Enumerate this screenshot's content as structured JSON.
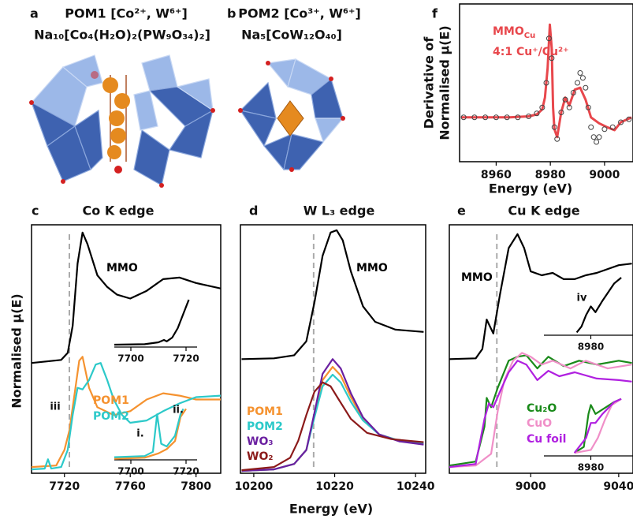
{
  "panels": [
    {
      "label": "a",
      "title": "POM1 [Co²⁺, W⁶⁺]",
      "formula": "Na₁₀[Co₄(H₂O)₂(PW₉O₃₄)₂]"
    },
    {
      "label": "b",
      "title": "POM2 [Co³⁺, W⁶⁺]",
      "formula": "Na₅[CoW₁₂O₄₀]"
    }
  ],
  "y_label": "Normalised μ(E)",
  "x_label": "Energy (eV)",
  "chart_data": [
    {
      "type": "line",
      "panel": "f",
      "xlabel": "Energy (eV)",
      "ylabel": [
        "Derivative of",
        "Normalised μ(E)"
      ],
      "xlim": [
        8946.5,
        9010.5
      ],
      "ylim": [
        -0.45,
        1.15
      ],
      "xticks": [
        8960,
        8980,
        9000
      ],
      "legend_text": [
        {
          "text": "MMO",
          "subscript": "Cu"
        },
        "4:1 Cu⁺/Cu²⁺"
      ],
      "series": [
        {
          "type": "line",
          "color": "#e8474c",
          "x": [
            8947,
            8965,
            8972,
            8975,
            8977,
            8978,
            8979,
            8979.8,
            8980.5,
            8981,
            8981.5,
            8982.5,
            8984,
            8985.5,
            8987,
            8989,
            8991,
            8993,
            8995,
            8998,
            9001,
            9003.7,
            9006,
            9010
          ],
          "values": [
            0,
            0,
            0.01,
            0.03,
            0.08,
            0.2,
            0.5,
            0.94,
            0.7,
            0.1,
            -0.12,
            -0.2,
            0.05,
            0.2,
            0.12,
            0.28,
            0.3,
            0.18,
            0,
            -0.06,
            -0.1,
            -0.13,
            -0.05,
            0
          ]
        },
        {
          "type": "scatter",
          "color": "#444444",
          "x": [
            8948,
            8952,
            8956,
            8960,
            8964,
            8968,
            8972,
            8975,
            8977,
            8978.5,
            8979.5,
            8980.5,
            8981.5,
            8982.5,
            8984,
            8985.5,
            8987,
            8988.5,
            8990,
            8991,
            8992,
            8993,
            8994,
            8995,
            8996,
            8997,
            8998,
            9000,
            9003,
            9006,
            9009
          ],
          "values": [
            0,
            0,
            0,
            0,
            0,
            0,
            0.01,
            0.04,
            0.1,
            0.35,
            0.8,
            0.6,
            -0.1,
            -0.22,
            0.05,
            0.18,
            0.1,
            0.25,
            0.35,
            0.45,
            0.4,
            0.3,
            0.1,
            -0.1,
            -0.2,
            -0.25,
            -0.2,
            -0.12,
            -0.1,
            -0.05,
            -0.02
          ]
        }
      ]
    },
    {
      "type": "line",
      "panel": "c",
      "title": "Co K edge",
      "xlim": [
        7700,
        7815
      ],
      "ylim": [
        0,
        3.2
      ],
      "xticks": [
        7720,
        7760,
        7800
      ],
      "reference_x": 7723,
      "annotations": [
        "iii"
      ],
      "series": [
        {
          "name": "MMO",
          "color": "#000000",
          "x": [
            7700,
            7718,
            7722,
            7725,
            7728,
            7731,
            7734,
            7740,
            7746,
            7752,
            7760,
            7770,
            7780,
            7790,
            7800,
            7815
          ],
          "values": [
            1.42,
            1.46,
            1.55,
            1.9,
            2.7,
            3.1,
            2.95,
            2.55,
            2.4,
            2.3,
            2.25,
            2.35,
            2.5,
            2.52,
            2.45,
            2.38
          ]
        },
        {
          "name": "POM1",
          "color": "#f5922f",
          "x": [
            7700,
            7715,
            7720,
            7723,
            7726,
            7729,
            7731,
            7735,
            7740,
            7750,
            7760,
            7770,
            7780,
            7790,
            7800,
            7815
          ],
          "values": [
            0.08,
            0.1,
            0.3,
            0.55,
            1.0,
            1.45,
            1.5,
            1.1,
            0.85,
            0.75,
            0.8,
            0.95,
            1.03,
            1.0,
            0.95,
            0.95
          ]
        },
        {
          "name": "POM2",
          "color": "#2cc9c9",
          "x": [
            7700,
            7708,
            7710,
            7712,
            7718,
            7722,
            7725,
            7728,
            7731,
            7735,
            7739,
            7742,
            7746,
            7750,
            7755,
            7760,
            7770,
            7780,
            7790,
            7800,
            7815
          ],
          "values": [
            0.05,
            0.06,
            0.18,
            0.06,
            0.08,
            0.3,
            0.75,
            1.1,
            1.08,
            1.2,
            1.4,
            1.42,
            1.2,
            0.95,
            0.75,
            0.65,
            0.68,
            0.8,
            0.9,
            0.98,
            1.0
          ]
        }
      ]
    },
    {
      "type": "line",
      "xlim": [
        7694,
        7724
      ],
      "ylim": [
        0,
        1
      ],
      "xticks": [
        7700,
        7720
      ],
      "series": [
        {
          "color": "#000000",
          "x": [
            7694,
            7705,
            7710,
            7712,
            7713,
            7715,
            7717,
            7719,
            7721
          ],
          "values": [
            0.05,
            0.06,
            0.1,
            0.15,
            0.12,
            0.2,
            0.4,
            0.7,
            1.0
          ]
        }
      ]
    },
    {
      "type": "line",
      "xlim": [
        7694,
        7724
      ],
      "ylim": [
        0,
        1
      ],
      "xticks": [
        7700,
        7720
      ],
      "annotations": [
        "i.",
        "ii."
      ],
      "series": [
        {
          "color": "#f5922f",
          "x": [
            7694,
            7705,
            7710,
            7713,
            7716,
            7718,
            7720
          ],
          "values": [
            0.02,
            0.04,
            0.12,
            0.2,
            0.35,
            0.8,
            0.95
          ]
        },
        {
          "color": "#2cc9c9",
          "x": [
            7694,
            7705,
            7708,
            7709.5,
            7711,
            7713,
            7716,
            7718,
            7719
          ],
          "values": [
            0.05,
            0.07,
            0.15,
            0.85,
            0.3,
            0.25,
            0.45,
            0.85,
            0.95
          ]
        }
      ]
    },
    {
      "type": "line",
      "panel": "d",
      "title": "W L₃ edge",
      "xlim": [
        10196.7,
        10242.5
      ],
      "ylim": [
        0,
        3.2
      ],
      "xticks": [
        10200,
        10220,
        10240
      ],
      "reference_x": 10214.8,
      "series": [
        {
          "name": "MMO",
          "color": "#000000",
          "x": [
            10197,
            10205,
            10210,
            10213,
            10215,
            10217,
            10219,
            10220.5,
            10222,
            10224,
            10227,
            10230,
            10235,
            10242
          ],
          "values": [
            1.47,
            1.48,
            1.52,
            1.7,
            2.2,
            2.8,
            3.1,
            3.13,
            3.0,
            2.6,
            2.15,
            1.95,
            1.85,
            1.82
          ]
        },
        {
          "name": "POM1",
          "color": "#f5922f",
          "x": [
            10197,
            10205,
            10210,
            10213,
            10215,
            10217,
            10219.5,
            10221.5,
            10224,
            10227,
            10231,
            10236,
            10242
          ],
          "values": [
            0.03,
            0.05,
            0.12,
            0.3,
            0.75,
            1.2,
            1.37,
            1.26,
            0.98,
            0.7,
            0.5,
            0.42,
            0.38
          ]
        },
        {
          "name": "POM2",
          "color": "#2cc9c9",
          "x": [
            10197,
            10205,
            10210,
            10213,
            10215,
            10217,
            10219.5,
            10221.5,
            10224,
            10227,
            10231,
            10236,
            10242
          ],
          "values": [
            0.03,
            0.05,
            0.12,
            0.3,
            0.72,
            1.12,
            1.27,
            1.17,
            0.92,
            0.68,
            0.5,
            0.42,
            0.38
          ]
        },
        {
          "name": "WO₃",
          "color": "#6a1fa0",
          "x": [
            10197,
            10205,
            10210,
            10213,
            10215,
            10217,
            10219.5,
            10221.5,
            10224,
            10227,
            10231,
            10236,
            10242
          ],
          "values": [
            0.03,
            0.05,
            0.12,
            0.3,
            0.78,
            1.28,
            1.47,
            1.35,
            1.03,
            0.72,
            0.5,
            0.41,
            0.37
          ]
        },
        {
          "name": "WO₂",
          "color": "#8b1a1a",
          "x": [
            10197,
            10205,
            10209,
            10211,
            10213,
            10215,
            10217,
            10219,
            10221,
            10224,
            10228,
            10234,
            10242
          ],
          "values": [
            0.04,
            0.08,
            0.2,
            0.42,
            0.75,
            1.05,
            1.17,
            1.12,
            0.95,
            0.7,
            0.52,
            0.44,
            0.4
          ]
        }
      ]
    },
    {
      "type": "line",
      "panel": "e",
      "title": "Cu K edge",
      "xlim": [
        8963,
        9046.5
      ],
      "ylim": [
        0,
        3.2
      ],
      "xticks": [
        9000,
        9040
      ],
      "reference_x": 8984.6,
      "series": [
        {
          "name": "MMO",
          "color": "#000000",
          "x": [
            8963,
            8975,
            8978,
            8980,
            8983,
            8986,
            8990,
            8994,
            8997,
            9000,
            9005,
            9010,
            9015,
            9020,
            9025,
            9030,
            9040,
            9046
          ],
          "values": [
            1.47,
            1.48,
            1.6,
            1.98,
            1.8,
            2.3,
            2.9,
            3.08,
            2.9,
            2.6,
            2.55,
            2.58,
            2.5,
            2.5,
            2.55,
            2.58,
            2.68,
            2.7
          ]
        },
        {
          "name": "Cu₂O",
          "color": "#1a8a1a",
          "x": [
            8963,
            8975,
            8979,
            8980,
            8982,
            8985,
            8990,
            8994,
            8998,
            9003,
            9008,
            9015,
            9022,
            9030,
            9040,
            9046
          ],
          "values": [
            0.1,
            0.15,
            0.6,
            0.97,
            0.85,
            1.1,
            1.45,
            1.5,
            1.52,
            1.35,
            1.5,
            1.38,
            1.45,
            1.4,
            1.45,
            1.42
          ]
        },
        {
          "name": "CuO",
          "color": "#f08fc8",
          "x": [
            8963,
            8975,
            8982,
            8985,
            8988,
            8992,
            8996,
            9000,
            9005,
            9010,
            9018,
            9025,
            9035,
            9046
          ],
          "values": [
            0.08,
            0.1,
            0.25,
            0.8,
            1.2,
            1.45,
            1.55,
            1.5,
            1.4,
            1.45,
            1.35,
            1.45,
            1.35,
            1.4
          ]
        },
        {
          "name": "Cu foil",
          "color": "#b020e0",
          "x": [
            8963,
            8975,
            8979,
            8981,
            8983,
            8986,
            8990,
            8994,
            8998,
            9003,
            9008,
            9013,
            9020,
            9030,
            9040,
            9046
          ],
          "values": [
            0.08,
            0.12,
            0.7,
            0.9,
            0.85,
            1.05,
            1.3,
            1.45,
            1.4,
            1.2,
            1.32,
            1.25,
            1.3,
            1.22,
            1.2,
            1.18
          ]
        }
      ]
    },
    {
      "type": "line",
      "xlim": [
        8960,
        8998
      ],
      "ylim": [
        0,
        1
      ],
      "xticks": [
        8980
      ],
      "annotations": [
        "iv"
      ],
      "series": [
        {
          "color": "#000000",
          "x": [
            8974,
            8976,
            8978,
            8980,
            8982,
            8985,
            8990,
            8993
          ],
          "values": [
            0.05,
            0.15,
            0.35,
            0.5,
            0.4,
            0.6,
            0.9,
            1.0
          ]
        }
      ]
    },
    {
      "type": "line",
      "xlim": [
        8960,
        8998
      ],
      "ylim": [
        0,
        1
      ],
      "xticks": [
        8980
      ],
      "series": [
        {
          "color": "#1a8a1a",
          "x": [
            8973,
            8977,
            8979,
            8980,
            8982,
            8986,
            8990,
            8993
          ],
          "values": [
            0.05,
            0.15,
            0.7,
            0.85,
            0.7,
            0.8,
            0.9,
            0.95
          ]
        },
        {
          "color": "#f08fc8",
          "x": [
            8973,
            8980,
            8983,
            8986,
            8989,
            8993
          ],
          "values": [
            0.05,
            0.1,
            0.3,
            0.6,
            0.85,
            0.95
          ]
        },
        {
          "color": "#b020e0",
          "x": [
            8973,
            8978,
            8980,
            8982,
            8985,
            8990,
            8993
          ],
          "values": [
            0.05,
            0.3,
            0.55,
            0.55,
            0.7,
            0.9,
            0.95
          ]
        }
      ]
    }
  ]
}
